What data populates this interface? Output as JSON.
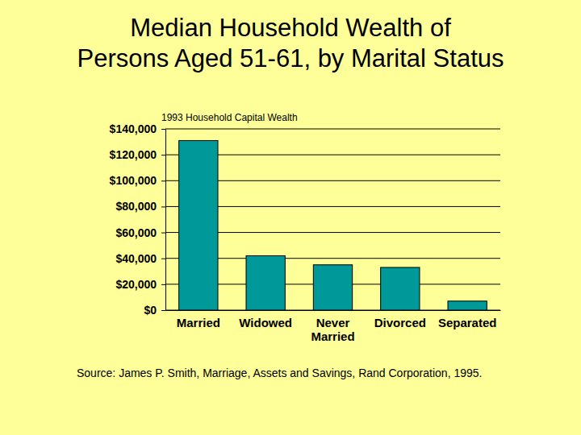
{
  "chart_data": {
    "type": "bar",
    "title": "Median Household Wealth of\nPersons Aged 51-61, by Marital Status",
    "subtitle": "1993 Household Capital Wealth",
    "source": "Source: James P. Smith, Marriage, Assets and Savings, Rand Corporation, 1995.",
    "categories": [
      "Married",
      "Widowed",
      "Never Married",
      "Divorced",
      "Separated"
    ],
    "values": [
      131000,
      42000,
      35000,
      33000,
      7000
    ],
    "color": "#009999",
    "ylim": [
      0,
      140000
    ],
    "yticks": [
      {
        "value": 0,
        "label": "$0"
      },
      {
        "value": 20000,
        "label": "$20,000"
      },
      {
        "value": 40000,
        "label": "$40,000"
      },
      {
        "value": 60000,
        "label": "$60,000"
      },
      {
        "value": 80000,
        "label": "$80,000"
      },
      {
        "value": 100000,
        "label": "$100,000"
      },
      {
        "value": 120000,
        "label": "$120,000"
      },
      {
        "value": 140000,
        "label": "$140,000"
      }
    ],
    "grid": true
  }
}
